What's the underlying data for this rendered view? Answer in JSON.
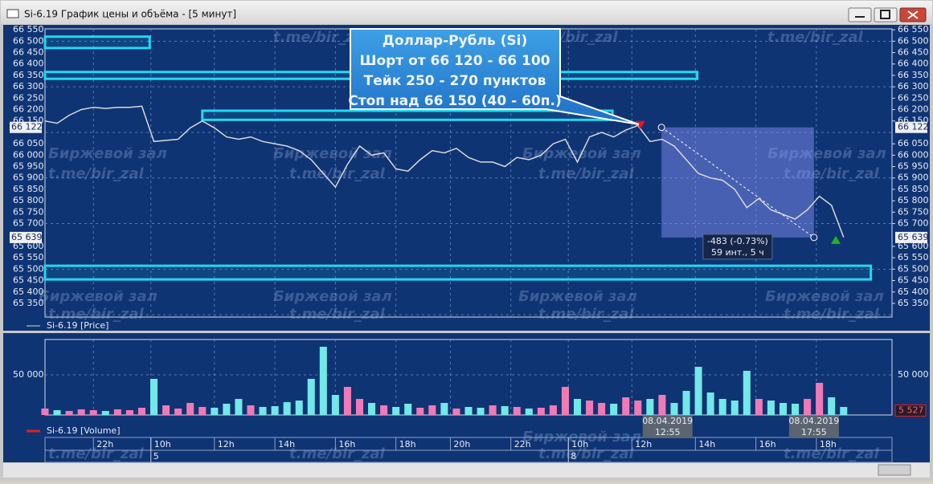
{
  "window": {
    "title": "Si-6.19 График цены и объёма - [5 минут]"
  },
  "watermarks": [
    "t.me/bir_zal",
    "Биржевой зал"
  ],
  "chart_data": [
    {
      "type": "line",
      "legend": "Si-6.19 [Price]",
      "color": "#d9d9d9",
      "x": [
        0,
        2,
        4,
        6,
        8,
        10,
        12,
        14,
        16,
        18,
        20,
        22,
        24,
        26,
        28,
        30,
        32,
        34,
        36,
        38,
        40,
        42,
        44,
        46,
        48,
        50,
        52,
        54,
        56,
        58,
        60,
        62,
        64,
        66,
        68,
        70,
        72,
        74,
        76,
        78,
        80,
        82,
        84,
        86,
        88,
        90,
        92,
        94,
        96,
        98,
        100,
        102,
        104,
        106,
        108,
        110,
        112,
        114,
        116,
        118,
        120,
        122,
        124,
        126,
        128,
        130,
        132
      ],
      "values": [
        66150,
        66140,
        66175,
        66200,
        66210,
        66205,
        66210,
        66210,
        66215,
        66060,
        66065,
        66070,
        66120,
        66150,
        66120,
        66080,
        66070,
        66080,
        66060,
        66050,
        66040,
        66020,
        65980,
        65920,
        65860,
        65960,
        66040,
        66000,
        66010,
        65940,
        65930,
        65980,
        66020,
        66010,
        66030,
        65990,
        65970,
        65970,
        65950,
        65990,
        65980,
        66000,
        66050,
        66070,
        65970,
        66080,
        66100,
        66080,
        66110,
        66130,
        66060,
        66070,
        66040,
        65980,
        65920,
        65900,
        65890,
        65850,
        65770,
        65810,
        65760,
        65740,
        65720,
        65760,
        65820,
        65780,
        65640
      ],
      "xlim": [
        0,
        140
      ],
      "ylim": [
        65290,
        66554
      ],
      "yticks": [
        {
          "value": 66550,
          "label": "66 550"
        },
        {
          "value": 66500,
          "label": "66 500"
        },
        {
          "value": 66450,
          "label": "66 450"
        },
        {
          "value": 66400,
          "label": "66 400"
        },
        {
          "value": 66350,
          "label": "66 350"
        },
        {
          "value": 66300,
          "label": "66 300"
        },
        {
          "value": 66250,
          "label": "66 250"
        },
        {
          "value": 66200,
          "label": "66 200"
        },
        {
          "value": 66150,
          "label": "66 150"
        },
        {
          "value": 66050,
          "label": "66 050"
        },
        {
          "value": 66000,
          "label": "66 000"
        },
        {
          "value": 65950,
          "label": "65 950"
        },
        {
          "value": 65900,
          "label": "65 900"
        },
        {
          "value": 65850,
          "label": "65 850"
        },
        {
          "value": 65800,
          "label": "65 800"
        },
        {
          "value": 65750,
          "label": "65 750"
        },
        {
          "value": 65700,
          "label": "65 700"
        },
        {
          "value": 65600,
          "label": "65 600"
        },
        {
          "value": 65550,
          "label": "65 550"
        },
        {
          "value": 65500,
          "label": "65 500"
        },
        {
          "value": 65450,
          "label": "65 450"
        },
        {
          "value": 65400,
          "label": "65 400"
        },
        {
          "value": 65350,
          "label": "65 350"
        }
      ],
      "ygrid": [
        66500,
        66300,
        66100,
        65900,
        65700,
        65500,
        65300
      ],
      "price_labels": [
        {
          "value": 66122,
          "label": "66 122"
        },
        {
          "value": 65639,
          "label": "65 639"
        }
      ],
      "xticks": [
        {
          "value": 8,
          "label": "22h"
        },
        {
          "value": 17.5,
          "label": "10h"
        },
        {
          "value": 28,
          "label": "12h"
        },
        {
          "value": 38,
          "label": "14h"
        },
        {
          "value": 48,
          "label": "16h"
        },
        {
          "value": 58,
          "label": "18h"
        },
        {
          "value": 67,
          "label": "20h"
        },
        {
          "value": 77,
          "label": "22h"
        },
        {
          "value": 86.5,
          "label": "10h"
        },
        {
          "value": 97,
          "label": "12h"
        },
        {
          "value": 107.5,
          "label": "14h"
        },
        {
          "value": 117.5,
          "label": "16h"
        },
        {
          "value": 127.5,
          "label": "18h"
        }
      ],
      "date_ticks": [
        {
          "value": 17.5,
          "label": "5"
        },
        {
          "value": 86.5,
          "label": "8"
        }
      ],
      "grid": true,
      "zones": [
        {
          "x1": 0,
          "x2": 17.3,
          "y1": 66470,
          "y2": 66520
        },
        {
          "x1": 0,
          "x2": 107.8,
          "y1": 66335,
          "y2": 66365
        },
        {
          "x1": 26,
          "x2": 93.8,
          "y1": 66155,
          "y2": 66195
        },
        {
          "x1": 0,
          "x2": 136.5,
          "y1": 65455,
          "y2": 65515
        }
      ],
      "annotation": [
        "Доллар-Рубль (Si)",
        "Шорт от 66 120 - 66 100",
        "Тейк 250 - 270 пунктов",
        "Стоп над 66 150 (40 - 60п.)"
      ],
      "measure": {
        "x1": 101.9,
        "y1": 66122,
        "x2": 127.1,
        "y2": 65639,
        "lines": [
          "-483 (-0.73%)",
          "59 инт., 5 ч"
        ]
      },
      "signals": [
        {
          "x": 98.4,
          "y": 66122,
          "dir": "down",
          "color": "#e8141c"
        },
        {
          "x": 130.7,
          "y": 65639,
          "dir": "up",
          "color": "#1fb51f"
        }
      ]
    },
    {
      "type": "bar",
      "legend": "Si-6.19 [Volume]",
      "up_color": "#f07ab6",
      "down_color": "#72e8e8",
      "x": [
        0,
        2,
        4,
        6,
        8,
        10,
        12,
        14,
        16,
        18,
        20,
        22,
        24,
        26,
        28,
        30,
        32,
        34,
        36,
        38,
        40,
        42,
        44,
        46,
        48,
        50,
        52,
        54,
        56,
        58,
        60,
        62,
        64,
        66,
        68,
        70,
        72,
        74,
        76,
        78,
        80,
        82,
        84,
        86,
        88,
        90,
        92,
        94,
        96,
        98,
        100,
        102,
        104,
        106,
        108,
        110,
        112,
        114,
        116,
        118,
        120,
        122,
        124,
        126,
        128,
        130,
        132
      ],
      "values": [
        8000,
        6000,
        5000,
        7000,
        6000,
        5000,
        7000,
        6000,
        9000,
        45000,
        12000,
        8000,
        15000,
        10000,
        9000,
        14000,
        20000,
        12000,
        10000,
        11000,
        16000,
        18000,
        45000,
        85000,
        25000,
        35000,
        20000,
        15000,
        12000,
        10000,
        14000,
        9000,
        12000,
        15000,
        8000,
        10000,
        9000,
        12000,
        11000,
        10000,
        8000,
        9000,
        12000,
        35000,
        20000,
        18000,
        15000,
        14000,
        22000,
        18000,
        20000,
        25000,
        15000,
        30000,
        60000,
        28000,
        20000,
        18000,
        55000,
        20000,
        18000,
        15000,
        14000,
        20000,
        40000,
        22000,
        10000
      ],
      "xlim": [
        0,
        140
      ],
      "ylim": [
        0,
        94000
      ],
      "yticks": [
        {
          "value": 50000,
          "label": "50 000"
        }
      ],
      "last_label": {
        "value": 5527,
        "label": "5 527"
      },
      "crosshair_labels": [
        {
          "x": 102.9,
          "lines": [
            "08.04.2019",
            "12:55"
          ]
        },
        {
          "x": 127.1,
          "lines": [
            "08.04.2019",
            "17:55"
          ]
        }
      ]
    }
  ]
}
